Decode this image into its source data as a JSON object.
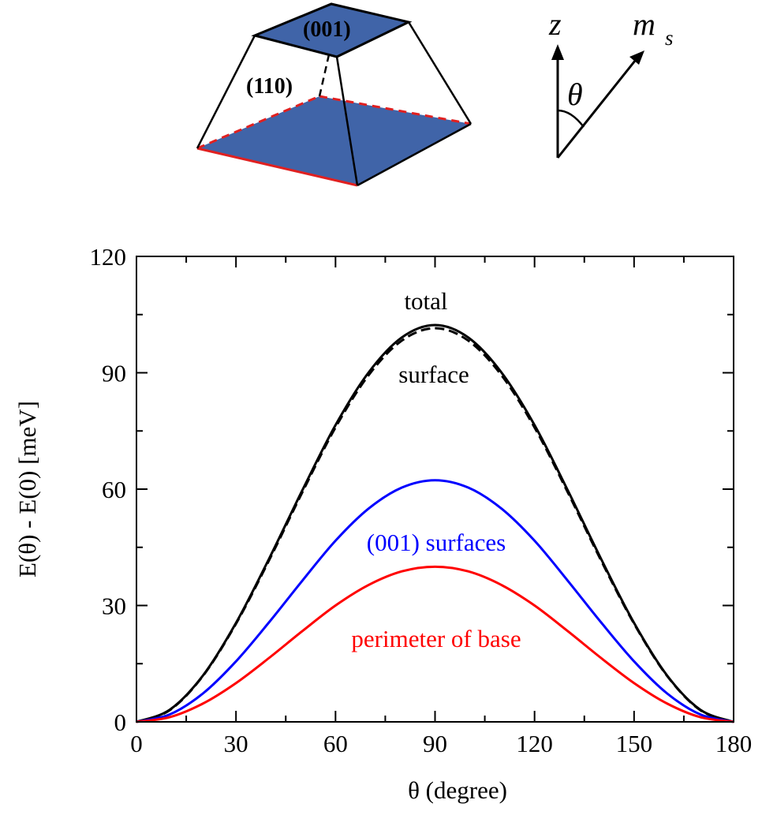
{
  "colors": {
    "total": "#000000",
    "surface": "#000000",
    "surfaces_001": "#0000ff",
    "perimeter": "#ff0000",
    "facet_fill": "#4064a8",
    "base_edge": "#e02020"
  },
  "diagram": {
    "top_facet_label": "(001)",
    "side_facet_label": "(110)",
    "z_label": "z",
    "m_label": "m",
    "m_subscript": "s",
    "angle_label": "θ"
  },
  "chart_data": {
    "type": "line",
    "xlabel": "θ (degree)",
    "ylabel": "E(θ) - E(0) [meV]",
    "xlim": [
      0,
      180
    ],
    "ylim": [
      0,
      120
    ],
    "xticks": [
      0,
      30,
      60,
      90,
      120,
      150,
      180
    ],
    "yticks": [
      0,
      30,
      60,
      90,
      120
    ],
    "xtick_labels": [
      "0",
      "30",
      "60",
      "90",
      "120",
      "150",
      "180"
    ],
    "ytick_labels": [
      "0",
      "30",
      "60",
      "90",
      "120"
    ],
    "grid": false,
    "series": [
      {
        "name": "total",
        "style": "solid",
        "color": "#000000",
        "x": [
          0,
          10,
          20,
          30,
          40,
          50,
          60,
          70,
          80,
          90,
          100,
          110,
          120,
          130,
          140,
          150,
          160,
          170,
          180
        ],
        "y": [
          0,
          3.1,
          11.9,
          25.5,
          42.1,
          59.7,
          76.5,
          90.1,
          99.1,
          102.3,
          99.1,
          90.1,
          76.5,
          59.7,
          42.1,
          25.5,
          11.9,
          3.1,
          0
        ]
      },
      {
        "name": "surface",
        "style": "dashed",
        "color": "#000000",
        "x": [
          0,
          10,
          20,
          30,
          40,
          50,
          60,
          70,
          80,
          90,
          100,
          110,
          120,
          130,
          140,
          150,
          160,
          170,
          180
        ],
        "y": [
          0,
          3.0,
          11.8,
          25.3,
          41.7,
          59.2,
          75.9,
          89.4,
          98.3,
          101.5,
          98.3,
          89.4,
          75.9,
          59.2,
          41.7,
          25.3,
          11.8,
          3.0,
          0
        ]
      },
      {
        "name": "(001) surfaces",
        "style": "solid",
        "color": "#0000ff",
        "x": [
          0,
          10,
          20,
          30,
          40,
          50,
          60,
          70,
          80,
          90,
          100,
          110,
          120,
          130,
          140,
          150,
          160,
          170,
          180
        ],
        "y": [
          0,
          1.9,
          7.3,
          15.6,
          25.7,
          36.4,
          46.7,
          55.0,
          60.4,
          62.3,
          60.4,
          55.0,
          46.7,
          36.4,
          25.7,
          15.6,
          7.3,
          1.9,
          0
        ]
      },
      {
        "name": "perimeter of base",
        "style": "solid",
        "color": "#ff0000",
        "x": [
          0,
          10,
          20,
          30,
          40,
          50,
          60,
          70,
          80,
          90,
          100,
          110,
          120,
          130,
          140,
          150,
          160,
          170,
          180
        ],
        "y": [
          0,
          1.2,
          4.7,
          10.0,
          16.5,
          23.4,
          30.0,
          35.3,
          38.8,
          40.0,
          38.8,
          35.3,
          30.0,
          23.4,
          16.5,
          10.0,
          4.7,
          1.2,
          0
        ]
      }
    ],
    "annotations": [
      "total",
      "surface",
      "(001) surfaces",
      "perimeter of base"
    ]
  }
}
